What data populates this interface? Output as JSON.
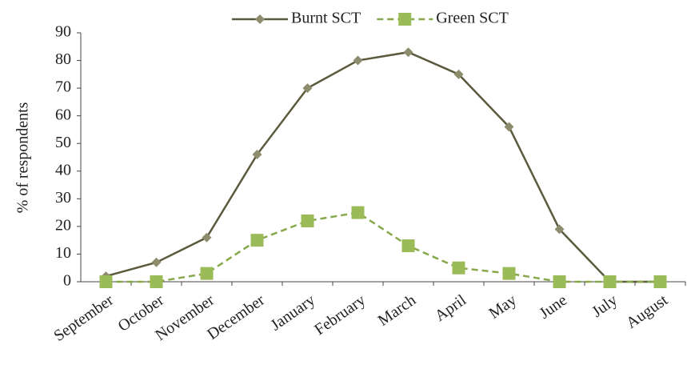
{
  "chart_data": {
    "type": "line",
    "y_label": "% of respondents",
    "categories": [
      "September",
      "October",
      "November",
      "December",
      "January",
      "February",
      "March",
      "April",
      "May",
      "June",
      "July",
      "August"
    ],
    "series": [
      {
        "name": "Burnt SCT",
        "color": "#5b5a3d",
        "marker_color": "#8d8c6c",
        "marker": "diamond",
        "dash": false,
        "values": [
          2,
          7,
          16,
          46,
          70,
          80,
          83,
          75,
          56,
          19,
          0,
          0
        ]
      },
      {
        "name": "Green SCT",
        "color": "#86a84a",
        "marker_color": "#9bbb59",
        "marker": "square",
        "dash": true,
        "values": [
          0,
          0,
          3,
          15,
          22,
          25,
          13,
          5,
          3,
          0,
          0,
          0
        ]
      }
    ],
    "ylim": [
      0,
      90
    ],
    "yticks": [
      0,
      10,
      20,
      30,
      40,
      50,
      60,
      70,
      80,
      90
    ],
    "legend": "top",
    "grid": false
  }
}
